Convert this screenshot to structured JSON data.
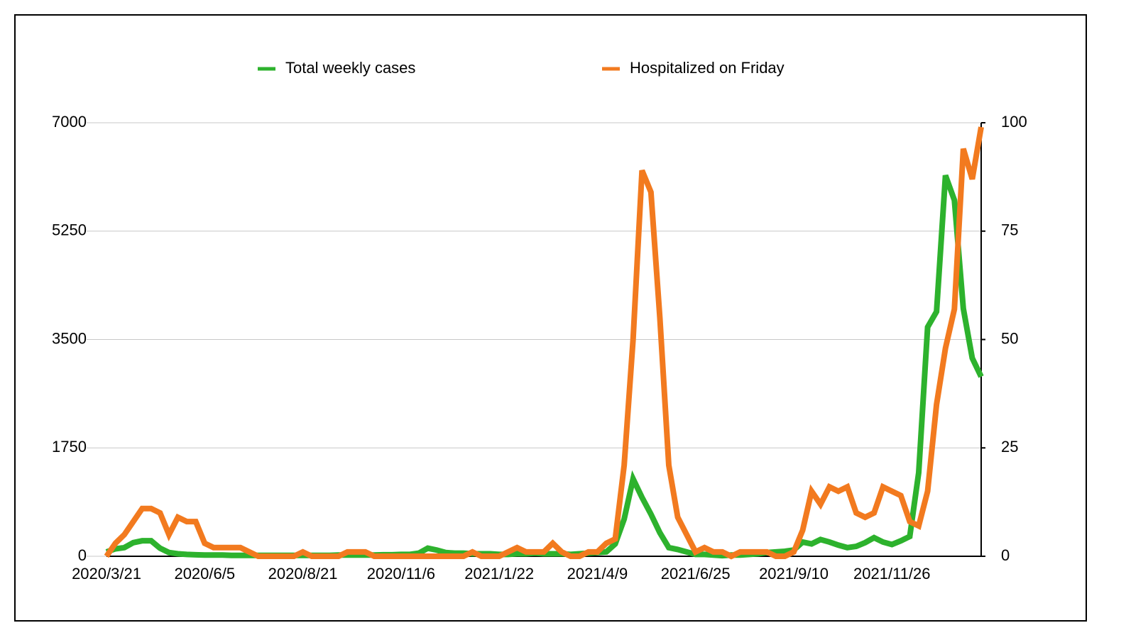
{
  "chart_data": {
    "type": "line",
    "categories": [
      "2020/3/21",
      null,
      null,
      null,
      null,
      null,
      null,
      null,
      null,
      null,
      null,
      "2020/6/5",
      null,
      null,
      null,
      null,
      null,
      null,
      null,
      null,
      null,
      null,
      "2020/8/21",
      null,
      null,
      null,
      null,
      null,
      null,
      null,
      null,
      null,
      null,
      "2020/11/6",
      null,
      null,
      null,
      null,
      null,
      null,
      null,
      null,
      null,
      null,
      "2021/1/22",
      null,
      null,
      null,
      null,
      null,
      null,
      null,
      null,
      null,
      null,
      "2021/4/9",
      null,
      null,
      null,
      null,
      null,
      null,
      null,
      null,
      null,
      null,
      "2021/6/25",
      null,
      null,
      null,
      null,
      null,
      null,
      null,
      null,
      null,
      null,
      "2021/9/10",
      null,
      null,
      null,
      null,
      null,
      null,
      null,
      null,
      null,
      null,
      "2021/11/26",
      null,
      null,
      null,
      null,
      null,
      null,
      null,
      null,
      null,
      null
    ],
    "series": [
      {
        "name": "Total weekly cases",
        "color": "#2db22d",
        "values": [
          70,
          120,
          140,
          220,
          250,
          250,
          130,
          60,
          40,
          30,
          25,
          20,
          20,
          20,
          15,
          15,
          15,
          15,
          15,
          15,
          15,
          15,
          15,
          15,
          15,
          15,
          20,
          20,
          20,
          20,
          20,
          25,
          25,
          30,
          30,
          50,
          130,
          100,
          60,
          50,
          50,
          40,
          40,
          40,
          30,
          30,
          40,
          40,
          50,
          40,
          40,
          40,
          30,
          40,
          50,
          60,
          70,
          200,
          600,
          1250,
          950,
          680,
          380,
          140,
          110,
          70,
          30,
          30,
          20,
          10,
          20,
          20,
          30,
          40,
          60,
          70,
          80,
          100,
          230,
          200,
          270,
          230,
          180,
          140,
          160,
          220,
          300,
          230,
          190,
          250,
          320,
          1350,
          3700,
          3950,
          6150,
          5750,
          4000,
          3200,
          2900
        ]
      },
      {
        "name": "Hospitalized on Friday",
        "color": "#f27a1f",
        "axis": "y2",
        "values": [
          0,
          3,
          5,
          8,
          11,
          11,
          10,
          5,
          9,
          8,
          8,
          3,
          2,
          2,
          2,
          2,
          1,
          0,
          0,
          0,
          0,
          0,
          1,
          0,
          0,
          0,
          0,
          1,
          1,
          1,
          0,
          0,
          0,
          0,
          0,
          0,
          0,
          0,
          0,
          0,
          0,
          1,
          0,
          0,
          0,
          1,
          2,
          1,
          1,
          1,
          3,
          1,
          0,
          0,
          1,
          1,
          3,
          4,
          21,
          50,
          89,
          84,
          55,
          21,
          9,
          5,
          1,
          2,
          1,
          1,
          0,
          1,
          1,
          1,
          1,
          0,
          0,
          1,
          6,
          15,
          12,
          16,
          15,
          16,
          10,
          9,
          10,
          16,
          15,
          14,
          8,
          7,
          15,
          35,
          48,
          57,
          94,
          87,
          99
        ]
      }
    ],
    "ylim": [
      0,
      7000
    ],
    "yticks": [
      0,
      1750,
      3500,
      5250,
      7000
    ],
    "y2lim": [
      0,
      100
    ],
    "y2ticks": [
      0,
      25,
      50,
      75,
      100
    ],
    "grid": true,
    "legend": "top"
  }
}
